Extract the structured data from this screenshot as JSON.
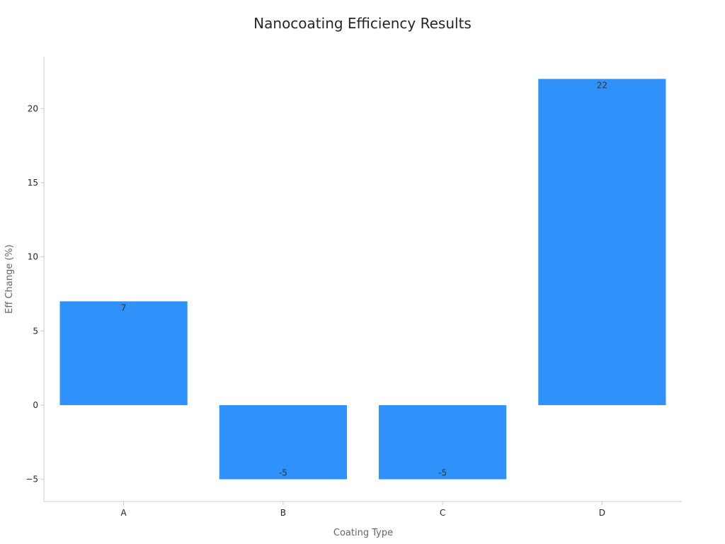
{
  "chart_data": {
    "type": "bar",
    "title": "Nanocoating Efficiency Results",
    "xlabel": "Coating Type",
    "ylabel": "Eff Change (%)",
    "categories": [
      "A",
      "B",
      "C",
      "D"
    ],
    "values": [
      7,
      -5,
      -5,
      22
    ],
    "data_labels": [
      "7",
      "-5",
      "-5",
      "22"
    ],
    "ylim": [
      -6.5,
      23.5
    ],
    "yticks": [
      -5,
      0,
      5,
      10,
      15,
      20
    ],
    "ytick_labels": [
      "−5",
      "0",
      "5",
      "10",
      "15",
      "20"
    ],
    "grid": false,
    "legend": "none",
    "bar_color": "#2f92fa"
  }
}
